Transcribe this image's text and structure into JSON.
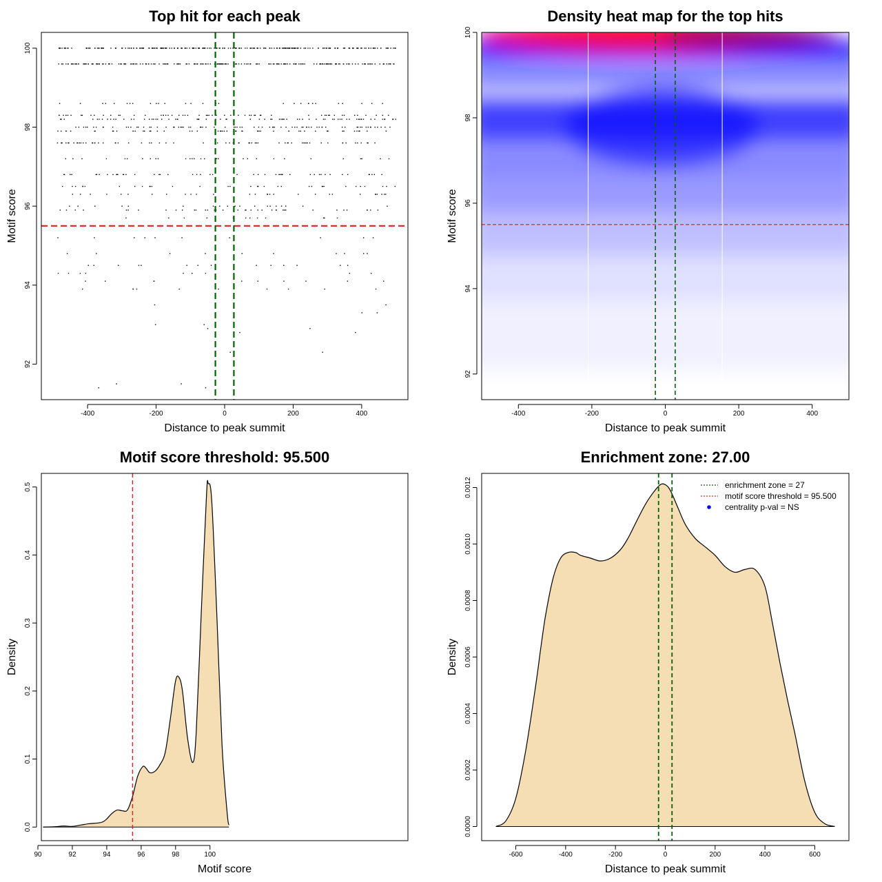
{
  "chart_data": [
    {
      "type": "scatter",
      "title": "Top hit for each peak",
      "xlabel": "Distance to peak summit",
      "ylabel": "Motif score",
      "xlim": [
        -535,
        535
      ],
      "ylim": [
        91.1,
        100.4
      ],
      "xticks": [
        -400,
        -200,
        0,
        200,
        400
      ],
      "yticks": [
        92,
        94,
        96,
        98
      ],
      "ytick_label_top": "100",
      "ytick_top_value": 100,
      "score_levels": [
        100,
        99.6,
        98.6,
        98.3,
        98.2,
        98.0,
        97.9,
        97.6,
        97.2,
        96.8,
        96.5,
        96.3,
        96.0,
        95.9,
        95.7,
        95.2,
        94.8,
        94.5,
        94.3,
        94.1,
        93.9,
        93.5,
        93.3,
        93.0,
        92.9,
        92.8,
        92.3,
        91.5,
        91.4
      ],
      "score_level_density": [
        1.0,
        0.85,
        0.12,
        0.25,
        0.3,
        0.32,
        0.22,
        0.28,
        0.12,
        0.2,
        0.14,
        0.12,
        0.08,
        0.16,
        0.05,
        0.04,
        0.04,
        0.06,
        0.04,
        0.04,
        0.04,
        0.01,
        0.01,
        0.01,
        0.01,
        0.01,
        0.01,
        0.01,
        0.01
      ],
      "threshold": {
        "score": 95.5,
        "color": "#dd2222"
      },
      "enrichment_zone": {
        "bounds": [
          -27,
          27
        ],
        "color": "#006400"
      },
      "grid": false
    },
    {
      "type": "heatmap",
      "title": "Density heat map for the top hits",
      "xlabel": "Distance to peak summit",
      "ylabel": "Motif score",
      "xlim": [
        -500,
        500
      ],
      "ylim": [
        91.4,
        100
      ],
      "xticks": [
        -400,
        -200,
        0,
        200,
        400
      ],
      "yticks": [
        92,
        94,
        96,
        98
      ],
      "ytick_label_top": "100",
      "ytick_top_value": 100,
      "color_scale": [
        "#ffffff",
        "#0000ff",
        "#ff0000"
      ],
      "white_grid_lines_x": [
        -210,
        155
      ],
      "threshold": {
        "score": 95.5,
        "color": "#dd2222"
      },
      "enrichment_zone": {
        "bounds": [
          -27,
          27
        ],
        "color": "#006400"
      }
    },
    {
      "type": "area",
      "title": "Motif score threshold: 95.500",
      "xlabel": "Motif score",
      "ylabel": "Density",
      "xlim": [
        90.2,
        111.5
      ],
      "ylim": [
        -0.02,
        0.52
      ],
      "xticks": [
        90,
        92,
        94,
        96,
        98,
        100
      ],
      "yticks": [
        0.0,
        0.1,
        0.2,
        0.3,
        0.4,
        0.5
      ],
      "ytick_labels": [
        "0.0",
        "0.1",
        "0.2",
        "0.3",
        "0.4",
        "0.5"
      ],
      "fill_color": "#f5deb3",
      "x": [
        90.3,
        91.0,
        91.5,
        92.0,
        92.5,
        93.0,
        93.5,
        93.8,
        94.0,
        94.3,
        94.6,
        94.9,
        95.2,
        95.5,
        95.8,
        96.1,
        96.3,
        96.5,
        96.8,
        97.1,
        97.4,
        97.7,
        98.0,
        98.2,
        98.4,
        98.7,
        99.0,
        99.2,
        99.5,
        99.8,
        99.9,
        100.1,
        100.4,
        100.7,
        101.0,
        101.1
      ],
      "y": [
        0.0,
        0.0005,
        0.0015,
        0.001,
        0.003,
        0.005,
        0.006,
        0.008,
        0.012,
        0.02,
        0.025,
        0.024,
        0.025,
        0.045,
        0.075,
        0.089,
        0.086,
        0.08,
        0.082,
        0.092,
        0.11,
        0.16,
        0.215,
        0.22,
        0.2,
        0.13,
        0.095,
        0.14,
        0.32,
        0.49,
        0.505,
        0.48,
        0.31,
        0.12,
        0.02,
        0.003
      ],
      "threshold": {
        "score": 95.5,
        "color": "#dd2222"
      }
    },
    {
      "type": "area",
      "title": "Enrichment zone: 27.00",
      "xlabel": "Distance to peak summit",
      "ylabel": "Density",
      "xlim": [
        -737,
        737
      ],
      "ylim": [
        -5e-05,
        0.00125
      ],
      "xticks": [
        -600,
        -400,
        -200,
        0,
        200,
        400,
        600
      ],
      "yticks": [
        0.0,
        0.0002,
        0.0004,
        0.0006,
        0.0008,
        0.001,
        0.0012
      ],
      "ytick_labels": [
        "0.0000",
        "0.0002",
        "0.0004",
        "0.0006",
        "0.0008",
        "0.0010",
        "0.0012"
      ],
      "fill_color": "#f5deb3",
      "x": [
        -680,
        -640,
        -600,
        -560,
        -520,
        -500,
        -480,
        -450,
        -420,
        -390,
        -360,
        -340,
        -300,
        -260,
        -220,
        -180,
        -150,
        -110,
        -80,
        -50,
        -20,
        0,
        20,
        50,
        80,
        120,
        160,
        200,
        240,
        280,
        320,
        360,
        400,
        430,
        460,
        490,
        520,
        560,
        600,
        640,
        680
      ],
      "y": [
        0.0,
        2e-05,
        0.0001,
        0.00027,
        0.0005,
        0.00063,
        0.00075,
        0.00088,
        0.00095,
        0.00097,
        0.00097,
        0.00096,
        0.00095,
        0.00094,
        0.00095,
        0.00098,
        0.00102,
        0.00109,
        0.00114,
        0.00118,
        0.00121,
        0.00121,
        0.00119,
        0.00113,
        0.00107,
        0.00102,
        0.00099,
        0.00096,
        0.00092,
        0.0009,
        0.00091,
        0.00091,
        0.00085,
        0.00072,
        0.00058,
        0.00045,
        0.00033,
        0.00016,
        5e-05,
        1e-05,
        0.0
      ],
      "enrichment_zone": {
        "bounds": [
          -27,
          27
        ],
        "color": "#006400"
      },
      "legend": {
        "position": "top-right",
        "entries": [
          {
            "label": "enrichment zone = 27",
            "style": "dotted-line",
            "color": "#006400"
          },
          {
            "label": "motif score threshold = 95.500",
            "style": "dotted-line",
            "color": "#dd2222"
          },
          {
            "label": "centrality p-val = NS",
            "style": "dot",
            "color": "#0000ff"
          }
        ]
      }
    }
  ]
}
